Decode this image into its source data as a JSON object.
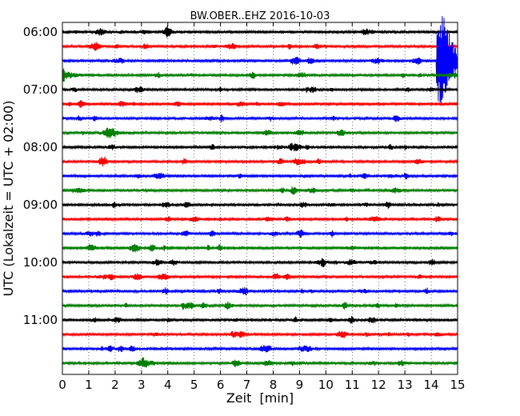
{
  "chart_data": {
    "type": "line",
    "title": "BW.OBER..EHZ 2016-10-03",
    "xlabel": "Zeit  [min]",
    "ylabel": "UTC (Lokalzeit = UTC + 02:00)",
    "xlim": [
      0,
      15
    ],
    "x_ticks": [
      "0",
      "1",
      "2",
      "3",
      "4",
      "5",
      "6",
      "7",
      "8",
      "9",
      "10",
      "11",
      "12",
      "13",
      "14",
      "15"
    ],
    "y_ticks": [
      "06:00",
      "07:00",
      "08:00",
      "09:00",
      "10:00",
      "11:00"
    ],
    "traces_start": "06:00",
    "trace_interval_min": 15,
    "trace_count": 24,
    "trace_colors": [
      "#000000",
      "#ff0000",
      "#0000ff",
      "#008000"
    ],
    "grid": true,
    "events": [
      {
        "trace": 2,
        "x_start": 14.2,
        "x_end": 15.0,
        "label": ""
      },
      {
        "trace": 3,
        "x_start": 0.0,
        "x_end": 1.2,
        "label": ""
      }
    ]
  }
}
